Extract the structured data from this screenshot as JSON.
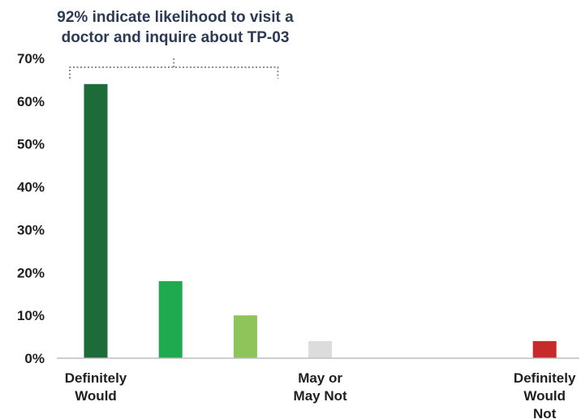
{
  "chart_data": {
    "type": "bar",
    "title_lines": [
      "92% indicate likelihood to visit a",
      "doctor and inquire about TP-03"
    ],
    "categories": [
      [
        "Definitely",
        "Would"
      ],
      [],
      [],
      [
        "May or",
        "May Not"
      ],
      [],
      [],
      [
        "Definitely",
        "Would",
        "Not"
      ]
    ],
    "values": [
      64,
      18,
      10,
      4,
      0,
      0,
      4
    ],
    "colors": [
      "#1e6b3a",
      "#1faa50",
      "#8ec45a",
      "#dcdcdc",
      "#ffffff",
      "#ffffff",
      "#c62a2a"
    ],
    "y_ticks": [
      "0%",
      "10%",
      "20%",
      "30%",
      "40%",
      "50%",
      "60%",
      "70%"
    ],
    "ylim": [
      0,
      70
    ],
    "grid": false,
    "bracket_color": "#8c8c8c",
    "axis_color": "#bfbfbf"
  }
}
